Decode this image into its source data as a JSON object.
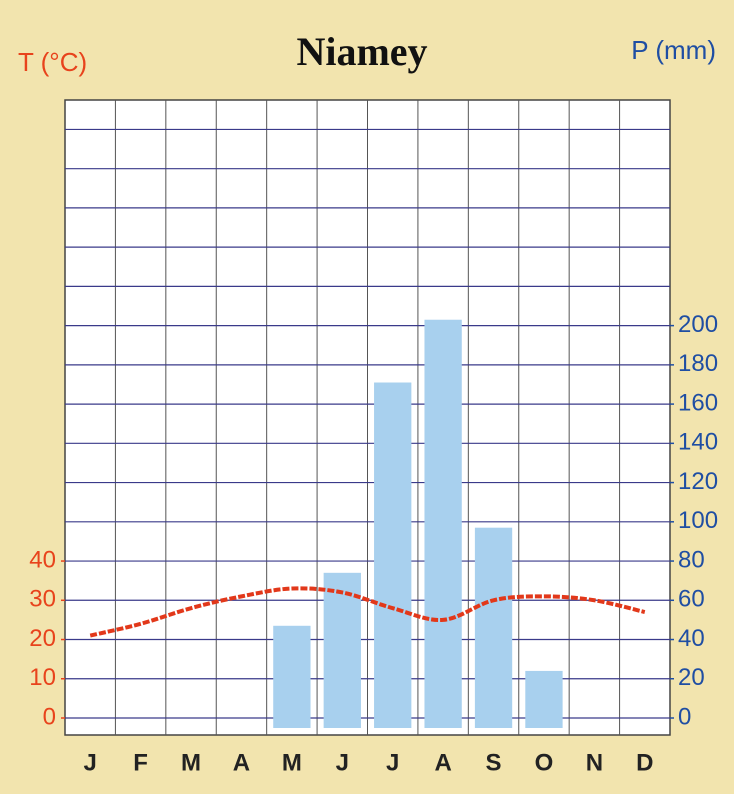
{
  "chart_data": {
    "type": "climograph",
    "title": "Niamey",
    "y_label": "T (°C)",
    "y2_label": "P (mm)",
    "categories": [
      "J",
      "F",
      "M",
      "A",
      "M",
      "J",
      "J",
      "A",
      "S",
      "O",
      "N",
      "D"
    ],
    "series": [
      {
        "name": "T (°C)",
        "type": "line",
        "color": "#e2381a",
        "values": [
          21,
          24,
          28,
          31,
          33,
          32,
          28,
          25,
          30,
          31,
          30,
          27
        ]
      },
      {
        "name": "P (mm)",
        "type": "bar",
        "axis": "y2",
        "color": "#a8d0ee",
        "values": [
          0,
          0,
          0,
          0,
          47,
          74,
          171,
          203,
          97,
          24,
          0,
          0
        ]
      }
    ],
    "ylim": [
      0,
      157.5
    ],
    "yticks": [
      0,
      10,
      20,
      30,
      40
    ],
    "y2lim": [
      0,
      315
    ],
    "y2ticks": [
      0,
      20,
      40,
      60,
      80,
      100,
      120,
      140,
      160,
      180,
      200
    ],
    "grid": true
  }
}
